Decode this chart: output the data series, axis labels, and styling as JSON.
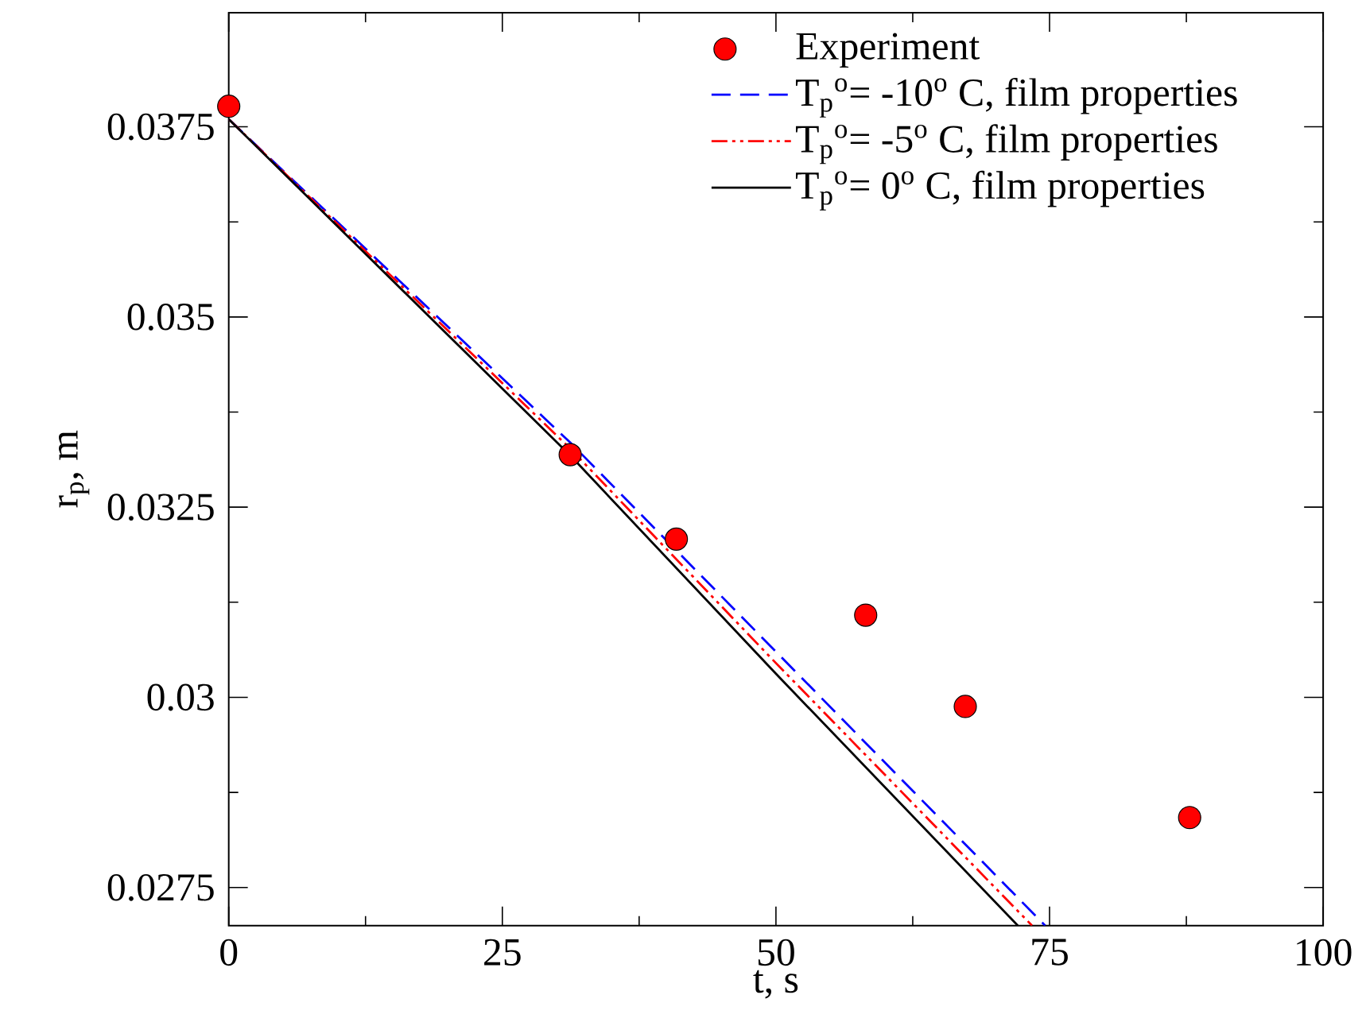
{
  "chart_data": {
    "type": "line",
    "xlabel": "t, s",
    "ylabel": "r$_{p}$, m",
    "xlim": [
      0,
      100
    ],
    "ylim": [
      0.027,
      0.039
    ],
    "xticks": [
      0,
      25,
      50,
      75,
      100
    ],
    "yticks": [
      0.0275,
      0.03,
      0.0325,
      0.035,
      0.0375
    ],
    "legend": "top right",
    "grid": false,
    "series": [
      {
        "name": "Experiment",
        "type": "scatter",
        "marker": "circle",
        "color": "#ff0000",
        "x": [
          0,
          31.2,
          40.9,
          58.2,
          67.3,
          87.8
        ],
        "values": [
          0.03777,
          0.03319,
          0.03208,
          0.03108,
          0.02988,
          0.02842
        ]
      },
      {
        "name": "T$_{p}$$^{o}$= -10$^{o}$ C, film properties",
        "line_style": "dashed",
        "color": "#0000ff",
        "x": [
          0,
          31.2,
          50,
          74.6
        ],
        "values": [
          0.0376,
          0.03335,
          0.0306,
          0.027
        ]
      },
      {
        "name": "T$_{p}$$^{o}$= -5$^{o}$ C, film properties",
        "line_style": "dashdotted",
        "color": "#ff0000",
        "x": [
          0,
          31.2,
          50,
          73.4
        ],
        "values": [
          0.0376,
          0.03327,
          0.03045,
          0.027
        ]
      },
      {
        "name": "T$_{p}$$^{o}$= 0$^{o}$ C, film properties",
        "line_style": "solid",
        "color": "#000000",
        "x": [
          0,
          31.2,
          50,
          72.1
        ],
        "values": [
          0.0376,
          0.03318,
          0.03031,
          0.027
        ]
      }
    ]
  }
}
